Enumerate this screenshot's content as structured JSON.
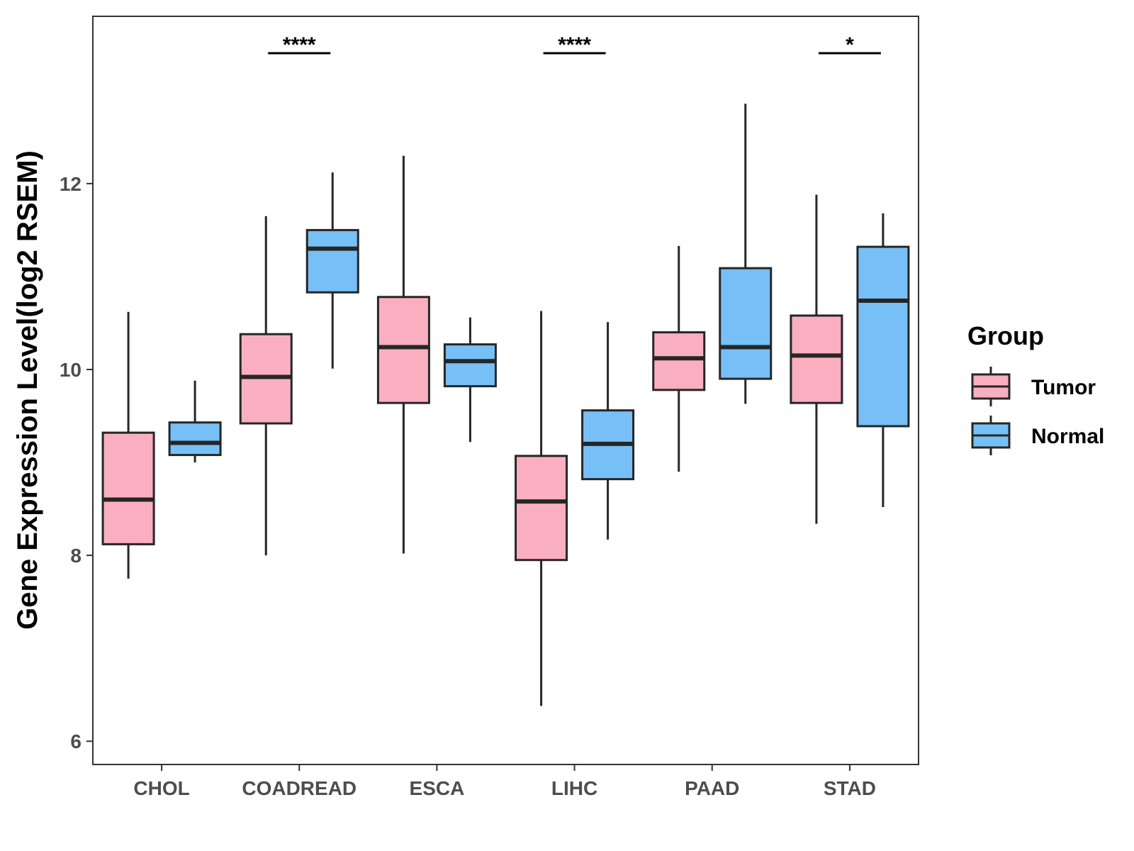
{
  "chart_data": {
    "type": "boxplot",
    "title": "",
    "xlabel": "",
    "ylabel": "Gene Expression Level(log2 RSEM)",
    "ylim": [
      5.75,
      13.8
    ],
    "yticks": [
      6,
      8,
      10,
      12
    ],
    "grid": false,
    "legend": {
      "title": "Group",
      "placement": "right"
    },
    "categories": [
      "CHOL",
      "COADREAD",
      "ESCA",
      "LIHC",
      "PAAD",
      "STAD"
    ],
    "series": [
      {
        "name": "Tumor",
        "color": "#FAAFC1",
        "boxes": [
          {
            "min": 7.75,
            "q1": 8.12,
            "median": 8.6,
            "q3": 9.32,
            "max": 10.62
          },
          {
            "min": 8.0,
            "q1": 9.42,
            "median": 9.92,
            "q3": 10.38,
            "max": 11.65
          },
          {
            "min": 8.02,
            "q1": 9.64,
            "median": 10.24,
            "q3": 10.78,
            "max": 12.3
          },
          {
            "min": 6.38,
            "q1": 7.95,
            "median": 8.58,
            "q3": 9.07,
            "max": 10.63
          },
          {
            "min": 8.9,
            "q1": 9.78,
            "median": 10.12,
            "q3": 10.4,
            "max": 11.33
          },
          {
            "min": 8.34,
            "q1": 9.64,
            "median": 10.15,
            "q3": 10.58,
            "max": 11.88
          }
        ]
      },
      {
        "name": "Normal",
        "color": "#76C0F7",
        "boxes": [
          {
            "min": 9.0,
            "q1": 9.08,
            "median": 9.21,
            "q3": 9.43,
            "max": 9.88
          },
          {
            "min": 10.01,
            "q1": 10.83,
            "median": 11.3,
            "q3": 11.5,
            "max": 12.12
          },
          {
            "min": 9.22,
            "q1": 9.82,
            "median": 10.09,
            "q3": 10.27,
            "max": 10.56
          },
          {
            "min": 8.17,
            "q1": 8.82,
            "median": 9.2,
            "q3": 9.56,
            "max": 10.51
          },
          {
            "min": 9.63,
            "q1": 9.9,
            "median": 10.24,
            "q3": 11.09,
            "max": 12.86
          },
          {
            "min": 8.52,
            "q1": 9.39,
            "median": 10.74,
            "q3": 11.32,
            "max": 11.68
          }
        ]
      }
    ],
    "significance": [
      {
        "category": "COADREAD",
        "label": "****"
      },
      {
        "category": "LIHC",
        "label": "****"
      },
      {
        "category": "STAD",
        "label": "*"
      }
    ]
  }
}
